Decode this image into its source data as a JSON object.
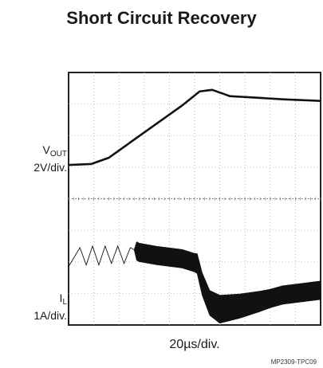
{
  "chart_data": {
    "type": "line",
    "title": "Short Circuit Recovery",
    "xlabel": "20µs/div.",
    "x_divisions": 10,
    "y_divisions": 8,
    "x_units": "µs",
    "grid": true,
    "channels": [
      {
        "name_main": "V",
        "name_sub": "OUT",
        "scale": "2V/div.",
        "shape": "smooth",
        "points": [
          [
            0,
            5.07
          ],
          [
            0.9,
            5.1
          ],
          [
            1.6,
            5.3
          ],
          [
            3.0,
            6.1
          ],
          [
            4.5,
            6.95
          ],
          [
            5.2,
            7.4
          ],
          [
            5.7,
            7.45
          ],
          [
            6.4,
            7.25
          ],
          [
            7.5,
            7.2
          ],
          [
            8.5,
            7.15
          ],
          [
            10,
            7.1
          ]
        ]
      },
      {
        "name_main": "I",
        "name_sub": "L",
        "scale": "1A/div.",
        "shape": "ripple",
        "points": [
          [
            0,
            1.85
          ],
          [
            0.45,
            2.45
          ],
          [
            0.7,
            1.9
          ],
          [
            0.95,
            2.5
          ],
          [
            1.2,
            1.9
          ],
          [
            1.45,
            2.5
          ],
          [
            1.7,
            1.95
          ],
          [
            1.95,
            2.5
          ],
          [
            2.2,
            1.95
          ],
          [
            2.45,
            2.45
          ],
          [
            2.8,
            2.3
          ],
          [
            3.5,
            2.2
          ],
          [
            4.5,
            2.1
          ],
          [
            5.1,
            1.95
          ],
          [
            5.3,
            1.3
          ],
          [
            5.6,
            0.7
          ],
          [
            6.0,
            0.5
          ],
          [
            6.8,
            0.6
          ],
          [
            7.6,
            0.75
          ],
          [
            8.5,
            0.95
          ],
          [
            10,
            1.1
          ]
        ],
        "ripple_amplitude": [
          [
            0,
            0
          ],
          [
            2.6,
            0
          ],
          [
            2.7,
            0.3
          ],
          [
            5.0,
            0.3
          ],
          [
            5.2,
            0.35
          ],
          [
            6.0,
            0.45
          ],
          [
            8.0,
            0.3
          ],
          [
            10,
            0.3
          ]
        ]
      }
    ]
  },
  "figure_id": "MP2309-TPC09"
}
